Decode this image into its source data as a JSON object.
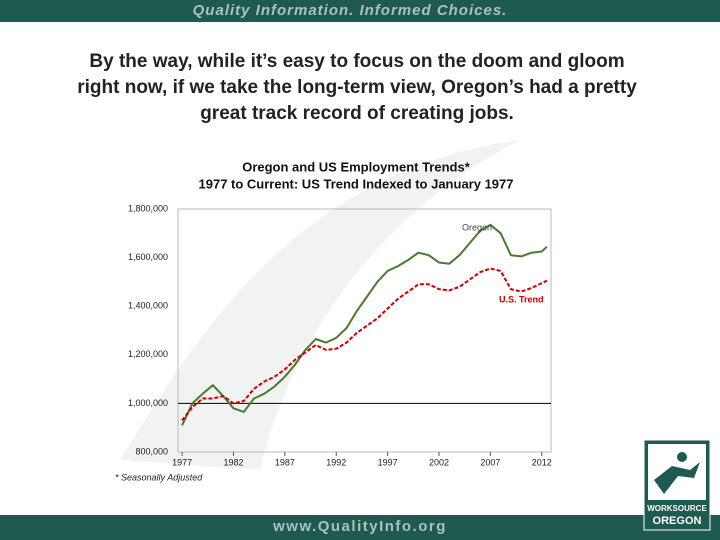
{
  "slide": {
    "banner": "Quality Information. Informed Choices.",
    "heading": [
      "By the way, while it’s easy to focus on the doom and gloom",
      "right now, if we take the long-term view, Oregon’s had a pretty",
      "great track record of creating jobs."
    ],
    "footer": "www.QualityInfo.org",
    "logo": [
      "WORKSOURCE",
      "OREGON"
    ]
  },
  "chart_data": {
    "type": "line",
    "title": [
      "Oregon and US Employment Trends*",
      "1977 to Current:  US Trend Indexed to January 1977"
    ],
    "footnote": "* Seasonally Adjusted",
    "x": [
      1977,
      1978,
      1979,
      1980,
      1981,
      1982,
      1983,
      1984,
      1985,
      1986,
      1987,
      1988,
      1989,
      1990,
      1991,
      1992,
      1993,
      1994,
      1995,
      1996,
      1997,
      1998,
      1999,
      2000,
      2001,
      2002,
      2003,
      2004,
      2005,
      2006,
      2007,
      2008,
      2009,
      2010,
      2011,
      2012,
      2012.5
    ],
    "series": [
      {
        "name": "Oregon",
        "color": "#4a7a2e",
        "dashed": false,
        "values": [
          910000,
          1000000,
          1040000,
          1075000,
          1030000,
          980000,
          965000,
          1020000,
          1040000,
          1070000,
          1110000,
          1160000,
          1220000,
          1265000,
          1250000,
          1270000,
          1310000,
          1380000,
          1440000,
          1500000,
          1545000,
          1565000,
          1590000,
          1620000,
          1610000,
          1580000,
          1575000,
          1610000,
          1660000,
          1710000,
          1735000,
          1700000,
          1610000,
          1605000,
          1620000,
          1625000,
          1645000
        ]
      },
      {
        "name": "U.S. Trend",
        "color": "#cc0000",
        "dashed": true,
        "values": [
          930000,
          985000,
          1020000,
          1020000,
          1030000,
          1000000,
          1010000,
          1060000,
          1090000,
          1110000,
          1140000,
          1180000,
          1210000,
          1240000,
          1220000,
          1225000,
          1250000,
          1290000,
          1320000,
          1350000,
          1390000,
          1430000,
          1460000,
          1490000,
          1490000,
          1470000,
          1465000,
          1480000,
          1510000,
          1540000,
          1555000,
          1545000,
          1470000,
          1460000,
          1475000,
          1495000,
          1505000
        ]
      }
    ],
    "xlim": [
      1976.6,
      2012.9
    ],
    "xticks": [
      1977,
      1982,
      1987,
      1992,
      1997,
      2002,
      2007,
      2012
    ],
    "ylim": [
      800000,
      1800000
    ],
    "yticks": [
      {
        "value": 800000,
        "label": "800,000"
      },
      {
        "value": 1000000,
        "label": "1,000,000"
      },
      {
        "value": 1200000,
        "label": "1,200,000"
      },
      {
        "value": 1400000,
        "label": "1,400,000"
      },
      {
        "value": 1600000,
        "label": "1,600,000"
      },
      {
        "value": 1800000,
        "label": "1,800,000"
      }
    ],
    "reference_line": 1000000,
    "grid": false
  }
}
